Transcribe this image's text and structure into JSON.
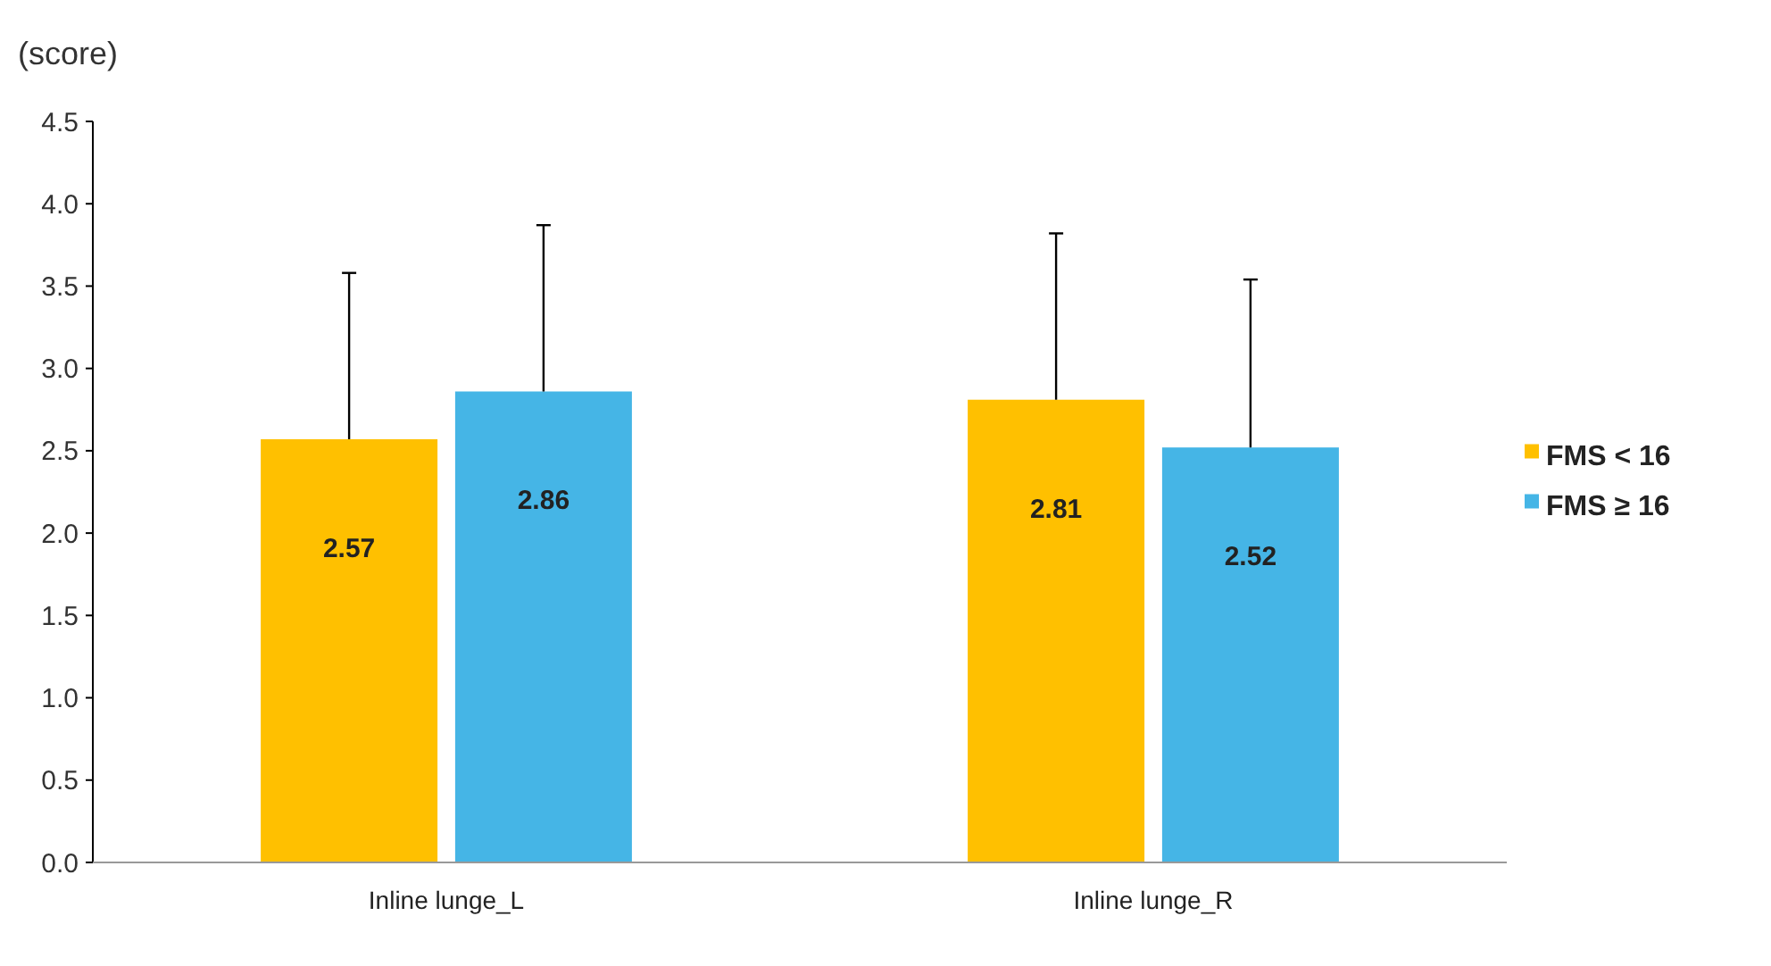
{
  "chart_data": {
    "type": "bar",
    "ylabel": "(score)",
    "categories": [
      "Inline lunge_L",
      "Inline lunge_R"
    ],
    "series": [
      {
        "name": "FMS < 16",
        "color": "#ffc000",
        "values": [
          2.57,
          2.81
        ],
        "errors": [
          [
            2.57,
            3.58
          ],
          [
            2.81,
            3.82
          ]
        ]
      },
      {
        "name": "FMS ≥ 16",
        "color": "#45b5e6",
        "values": [
          2.86,
          2.52
        ],
        "errors": [
          [
            2.86,
            3.87
          ],
          [
            2.52,
            3.54
          ]
        ]
      }
    ],
    "ylim": [
      0,
      4.5
    ],
    "yticks": [
      {
        "value": 0,
        "label": "0.0"
      },
      {
        "value": 0.5,
        "label": "0.5"
      },
      {
        "value": 1,
        "label": "1.0"
      },
      {
        "value": 1.5,
        "label": "1.5"
      },
      {
        "value": 2,
        "label": "2.0"
      },
      {
        "value": 2.5,
        "label": "2.5"
      },
      {
        "value": 3,
        "label": "3.0"
      },
      {
        "value": 3.5,
        "label": "3.5"
      },
      {
        "value": 4,
        "label": "4.0"
      },
      {
        "value": 4.5,
        "label": "4.5"
      }
    ],
    "data_labels": true,
    "legend": "right",
    "grid": false
  }
}
